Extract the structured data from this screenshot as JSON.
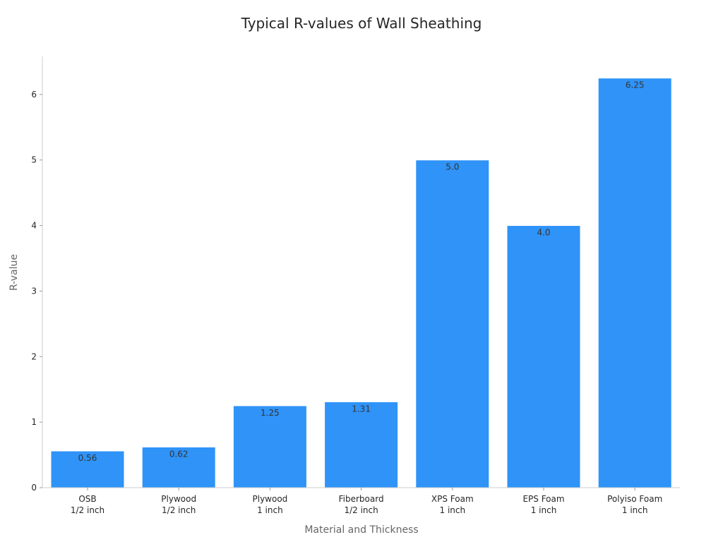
{
  "chart_data": {
    "type": "bar",
    "title": "Typical R-values of Wall Sheathing",
    "xlabel": "Material and Thickness",
    "ylabel": "R-value",
    "categories": [
      [
        "OSB",
        "1/2 inch"
      ],
      [
        "Plywood",
        "1/2 inch"
      ],
      [
        "Plywood",
        "1 inch"
      ],
      [
        "Fiberboard",
        "1/2 inch"
      ],
      [
        "XPS Foam",
        "1 inch"
      ],
      [
        "EPS Foam",
        "1 inch"
      ],
      [
        "Polyiso Foam",
        "1 inch"
      ]
    ],
    "values": [
      0.56,
      0.62,
      1.25,
      1.31,
      5.0,
      4.0,
      6.25
    ],
    "value_labels": [
      "0.56",
      "0.62",
      "1.25",
      "1.31",
      "5.0",
      "4.0",
      "6.25"
    ],
    "yticks": [
      0,
      1,
      2,
      3,
      4,
      5,
      6
    ],
    "ylim": [
      0,
      6.58
    ],
    "grid": false,
    "legend": "none",
    "colors": {
      "bar": "#2f93f8",
      "title": "#262626",
      "axis_label": "#666666",
      "tick_label": "#262626",
      "bar_label": "#333333"
    }
  }
}
